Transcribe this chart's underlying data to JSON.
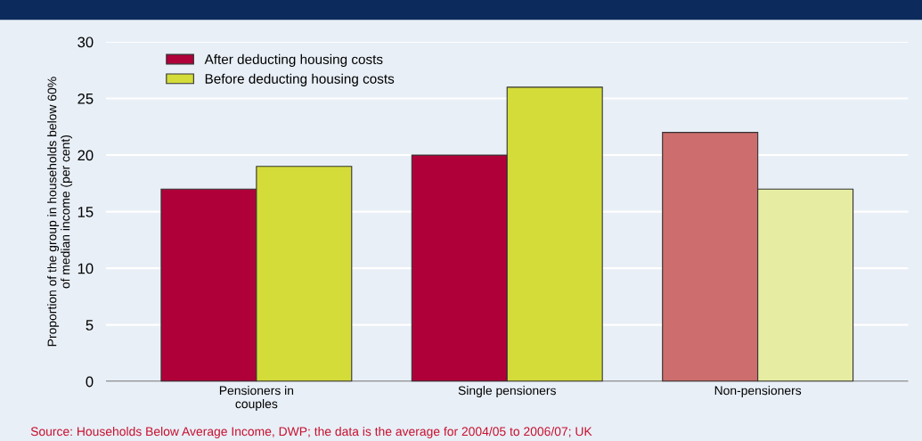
{
  "chart_data": {
    "type": "bar",
    "categories": [
      "Pensioners in\ncouples",
      "Single pensioners",
      "Non-pensioners"
    ],
    "series": [
      {
        "name": "After deducting housing costs",
        "color": "#b0003a",
        "colors": [
          "#b0003a",
          "#b0003a",
          "#cd6d6d"
        ],
        "values": [
          17,
          20,
          22
        ]
      },
      {
        "name": "Before deducting housing costs",
        "color": "#d4dc3a",
        "colors": [
          "#d4dc3a",
          "#d4dc3a",
          "#e6eca2"
        ],
        "values": [
          19,
          26,
          17
        ]
      }
    ],
    "ylabel": "Proportion of the group in households below 60%\nof median income (per cent)",
    "ylim": [
      0,
      30
    ],
    "yticks": [
      0,
      5,
      10,
      15,
      20,
      25,
      30
    ],
    "grid": "y",
    "legend": "top left",
    "annotations": [
      "Source: Households Below Average Income, DWP; the data is the average for 2004/05 to 2006/07; UK"
    ]
  }
}
